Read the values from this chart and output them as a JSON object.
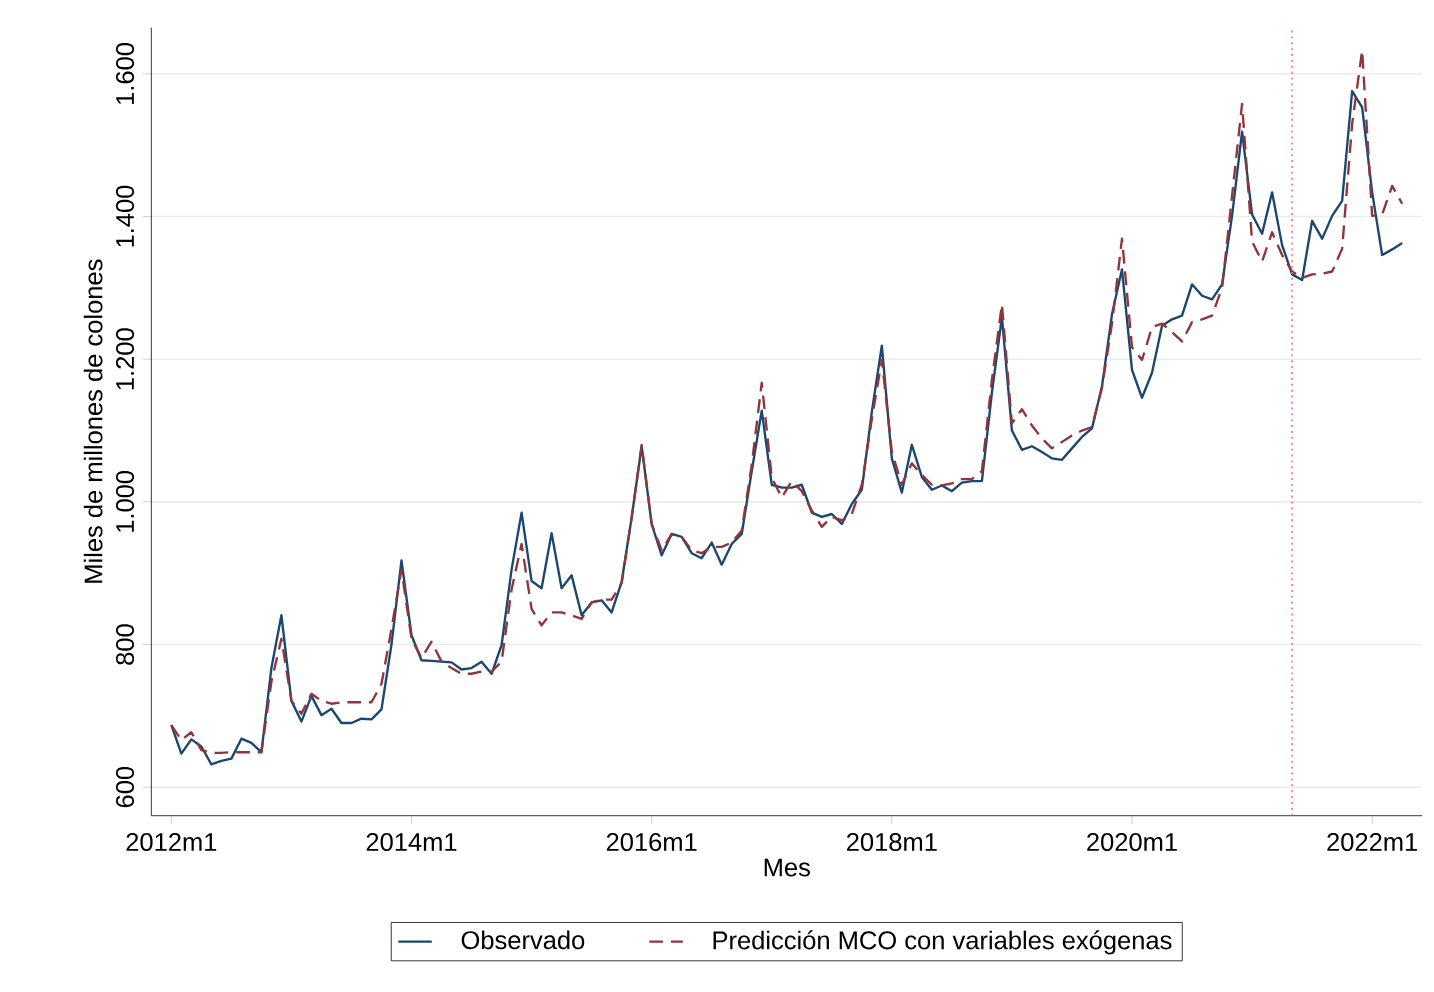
{
  "chart_data": {
    "type": "line",
    "xlabel": "Mes",
    "ylabel": "Miles de millones de colones",
    "x": [
      "2012-01",
      "2012-02",
      "2012-03",
      "2012-04",
      "2012-05",
      "2012-06",
      "2012-07",
      "2012-08",
      "2012-09",
      "2012-10",
      "2012-11",
      "2012-12",
      "2013-01",
      "2013-02",
      "2013-03",
      "2013-04",
      "2013-05",
      "2013-06",
      "2013-07",
      "2013-08",
      "2013-09",
      "2013-10",
      "2013-11",
      "2013-12",
      "2014-01",
      "2014-02",
      "2014-03",
      "2014-04",
      "2014-05",
      "2014-06",
      "2014-07",
      "2014-08",
      "2014-09",
      "2014-10",
      "2014-11",
      "2014-12",
      "2015-01",
      "2015-02",
      "2015-03",
      "2015-04",
      "2015-05",
      "2015-06",
      "2015-07",
      "2015-08",
      "2015-09",
      "2015-10",
      "2015-11",
      "2015-12",
      "2016-01",
      "2016-02",
      "2016-03",
      "2016-04",
      "2016-05",
      "2016-06",
      "2016-07",
      "2016-08",
      "2016-09",
      "2016-10",
      "2016-11",
      "2016-12",
      "2017-01",
      "2017-02",
      "2017-03",
      "2017-04",
      "2017-05",
      "2017-06",
      "2017-07",
      "2017-08",
      "2017-09",
      "2017-10",
      "2017-11",
      "2017-12",
      "2018-01",
      "2018-02",
      "2018-03",
      "2018-04",
      "2018-05",
      "2018-06",
      "2018-07",
      "2018-08",
      "2018-09",
      "2018-10",
      "2018-11",
      "2018-12",
      "2019-01",
      "2019-02",
      "2019-03",
      "2019-04",
      "2019-05",
      "2019-06",
      "2019-07",
      "2019-08",
      "2019-09",
      "2019-10",
      "2019-11",
      "2019-12",
      "2020-01",
      "2020-02",
      "2020-03",
      "2020-04",
      "2020-05",
      "2020-06",
      "2020-07",
      "2020-08",
      "2020-09",
      "2020-10",
      "2020-11",
      "2020-12",
      "2021-01",
      "2021-02",
      "2021-03",
      "2021-04",
      "2021-05",
      "2021-06",
      "2021-07",
      "2021-08",
      "2021-09",
      "2021-10",
      "2021-11",
      "2021-12",
      "2022-01",
      "2022-02",
      "2022-03",
      "2022-04"
    ],
    "series": [
      {
        "name": "Observado",
        "color": "#1a476f",
        "line_style": "solid",
        "values": [
          687,
          647,
          667,
          657,
          632,
          637,
          640,
          668,
          662,
          649,
          767,
          841,
          721,
          692,
          728,
          701,
          710,
          690,
          690,
          696,
          695,
          709,
          800,
          918,
          813,
          778,
          777,
          776,
          775,
          765,
          767,
          776,
          759,
          799,
          905,
          985,
          889,
          879,
          956,
          879,
          897,
          841,
          859,
          862,
          845,
          888,
          978,
          1078,
          969,
          925,
          955,
          951,
          928,
          921,
          943,
          912,
          941,
          955,
          1043,
          1128,
          1024,
          1020,
          1020,
          1024,
          985,
          979,
          983,
          969,
          997,
          1017,
          1126,
          1219,
          1061,
          1013,
          1080,
          1035,
          1017,
          1023,
          1015,
          1027,
          1029,
          1029,
          1153,
          1259,
          1100,
          1073,
          1078,
          1070,
          1061,
          1059,
          1075,
          1091,
          1103,
          1162,
          1263,
          1326,
          1185,
          1146,
          1181,
          1247,
          1256,
          1261,
          1305,
          1289,
          1284,
          1305,
          1401,
          1519,
          1403,
          1376,
          1434,
          1360,
          1319,
          1311,
          1394,
          1369,
          1401,
          1422,
          1576,
          1553,
          1434,
          1346,
          1354,
          1363
        ]
      },
      {
        "name": "Predicción MCO con variables exógenas",
        "color": "#90353b",
        "line_style": "dashed",
        "values": [
          687,
          666,
          677,
          652,
          648,
          648,
          649,
          649,
          649,
          649,
          748,
          808,
          721,
          703,
          731,
          721,
          717,
          719,
          719,
          719,
          719,
          745,
          822,
          905,
          808,
          781,
          804,
          776,
          767,
          759,
          759,
          762,
          762,
          776,
          877,
          941,
          850,
          827,
          845,
          845,
          841,
          836,
          859,
          863,
          863,
          886,
          978,
          1080,
          969,
          932,
          955,
          951,
          932,
          928,
          937,
          937,
          943,
          960,
          1052,
          1167,
          1034,
          1006,
          1029,
          1015,
          988,
          965,
          979,
          974,
          983,
          1024,
          1116,
          1199,
          1070,
          1024,
          1054,
          1038,
          1024,
          1023,
          1026,
          1032,
          1032,
          1043,
          1171,
          1277,
          1110,
          1130,
          1107,
          1089,
          1075,
          1084,
          1093,
          1100,
          1105,
          1160,
          1250,
          1369,
          1217,
          1199,
          1245,
          1250,
          1238,
          1225,
          1252,
          1256,
          1261,
          1300,
          1429,
          1558,
          1365,
          1337,
          1378,
          1346,
          1323,
          1314,
          1319,
          1320,
          1323,
          1355,
          1530,
          1633,
          1401,
          1403,
          1443,
          1418
        ]
      }
    ],
    "xlim": [
      "2011-11",
      "2022-06"
    ],
    "xticks": [
      {
        "value": "2012-01",
        "label": "2012m1"
      },
      {
        "value": "2014-01",
        "label": "2014m1"
      },
      {
        "value": "2016-01",
        "label": "2016m1"
      },
      {
        "value": "2018-01",
        "label": "2018m1"
      },
      {
        "value": "2020-01",
        "label": "2020m1"
      },
      {
        "value": "2022-01",
        "label": "2022m1"
      }
    ],
    "ylim": [
      560,
      1665
    ],
    "yticks": [
      {
        "value": 600,
        "label": "600"
      },
      {
        "value": 800,
        "label": "800"
      },
      {
        "value": 1000,
        "label": "1.000"
      },
      {
        "value": 1200,
        "label": "1.200"
      },
      {
        "value": 1400,
        "label": "1.400"
      },
      {
        "value": 1600,
        "label": "1.600"
      }
    ],
    "ref_lines": [
      {
        "axis": "x",
        "value": "2021-05",
        "color": "#e8708a",
        "line_style": "dotted"
      }
    ],
    "grid": "y",
    "legend": "bottom"
  }
}
